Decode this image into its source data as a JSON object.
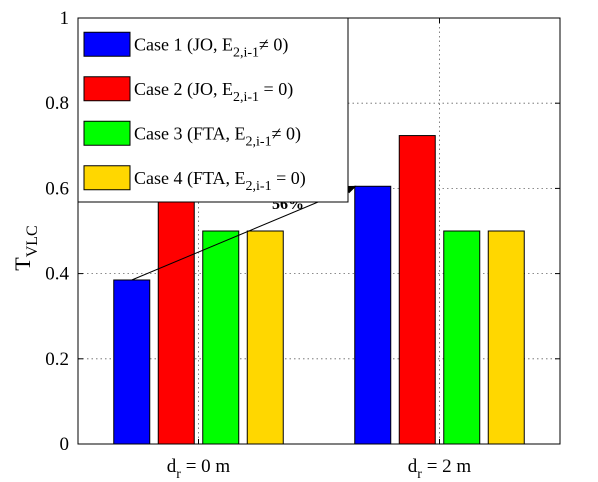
{
  "chart_data": {
    "type": "bar",
    "categories": [
      {
        "main": "d",
        "sub": "r",
        "rest": " = 0 m"
      },
      {
        "main": "d",
        "sub": "r",
        "rest": " = 2 m"
      }
    ],
    "series": [
      {
        "name": "Case 1 (JO, E",
        "name_sub": "2,i-1",
        "name_tail": "≠ 0)",
        "color": "#0000ff",
        "values": [
          0.385,
          0.605
        ]
      },
      {
        "name": "Case 2 (JO, E",
        "name_sub": "2,i-1",
        "name_tail": " = 0)",
        "color": "#ff0000",
        "values": [
          0.61,
          0.724
        ]
      },
      {
        "name": "Case 3 (FTA, E",
        "name_sub": "2,i-1",
        "name_tail": "≠ 0)",
        "color": "#00ff00",
        "values": [
          0.5,
          0.5
        ]
      },
      {
        "name": "Case 4 (FTA, E",
        "name_sub": "2,i-1",
        "name_tail": " = 0)",
        "color": "#ffd700",
        "values": [
          0.5,
          0.5
        ]
      }
    ],
    "ylabel": {
      "main": "T",
      "sub": "VLC"
    },
    "ylim": [
      0,
      1
    ],
    "yticks": [
      "0",
      "0.2",
      "0.4",
      "0.6",
      "0.8",
      "1"
    ],
    "grid": true,
    "legend_position": "top-left",
    "annotation": {
      "text": "56%",
      "from": {
        "category": 0,
        "value": 0.385
      },
      "to": {
        "category": 1,
        "value": 0.605
      }
    }
  }
}
